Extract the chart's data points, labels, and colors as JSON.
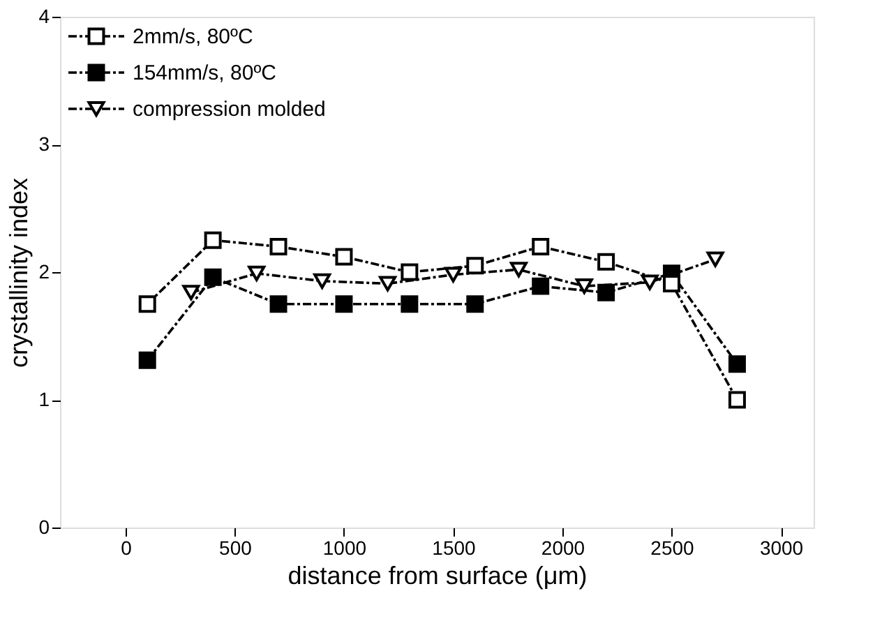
{
  "chart_data": {
    "type": "line",
    "xlabel": "distance from surface (μm)",
    "ylabel": "crystallinity index",
    "xlim": [
      -300,
      3150
    ],
    "xticks": [
      0,
      500,
      1000,
      1500,
      2000,
      2500,
      3000
    ],
    "ylim": [
      0,
      4
    ],
    "yticks": [
      0,
      1,
      2,
      3,
      4
    ],
    "grid": false,
    "legend": "top left",
    "line_style": "dashed",
    "series": [
      {
        "name": "2mm/s, 80ºC",
        "color": "#000000",
        "marker": "square",
        "colors": [
          "#ffffff",
          "#ffffff",
          "#ffffff",
          "#ffffff",
          "#ffffff",
          "#ffffff",
          "#ffffff",
          "#ffffff",
          "#ffffff",
          "#ffffff"
        ],
        "x": [
          100,
          400,
          700,
          1000,
          1300,
          1600,
          1900,
          2200,
          2500,
          2800
        ],
        "values": [
          1.75,
          2.25,
          2.2,
          2.12,
          2.0,
          2.05,
          2.2,
          2.08,
          1.91,
          1.0
        ]
      },
      {
        "name": "154mm/s, 80ºC",
        "color": "#000000",
        "marker": "square",
        "colors": [
          "#000000",
          "#000000",
          "#000000",
          "#000000",
          "#000000",
          "#000000",
          "#000000",
          "#000000",
          "#000000",
          "#000000"
        ],
        "x": [
          100,
          400,
          700,
          1000,
          1300,
          1600,
          1900,
          2200,
          2500,
          2800
        ],
        "values": [
          1.31,
          1.96,
          1.75,
          1.75,
          1.75,
          1.75,
          1.89,
          1.84,
          1.99,
          1.28
        ]
      },
      {
        "name": "compression molded",
        "color": "#000000",
        "marker": "triangle",
        "colors": [
          "#ffffff",
          "#ffffff",
          "#ffffff",
          "#ffffff",
          "#ffffff",
          "#ffffff",
          "#ffffff",
          "#ffffff",
          "#ffffff"
        ],
        "x": [
          300,
          600,
          900,
          1200,
          1500,
          1800,
          2100,
          2400,
          2700
        ],
        "values": [
          1.84,
          1.99,
          1.93,
          1.91,
          1.98,
          2.02,
          1.89,
          1.92,
          2.1
        ]
      }
    ]
  }
}
